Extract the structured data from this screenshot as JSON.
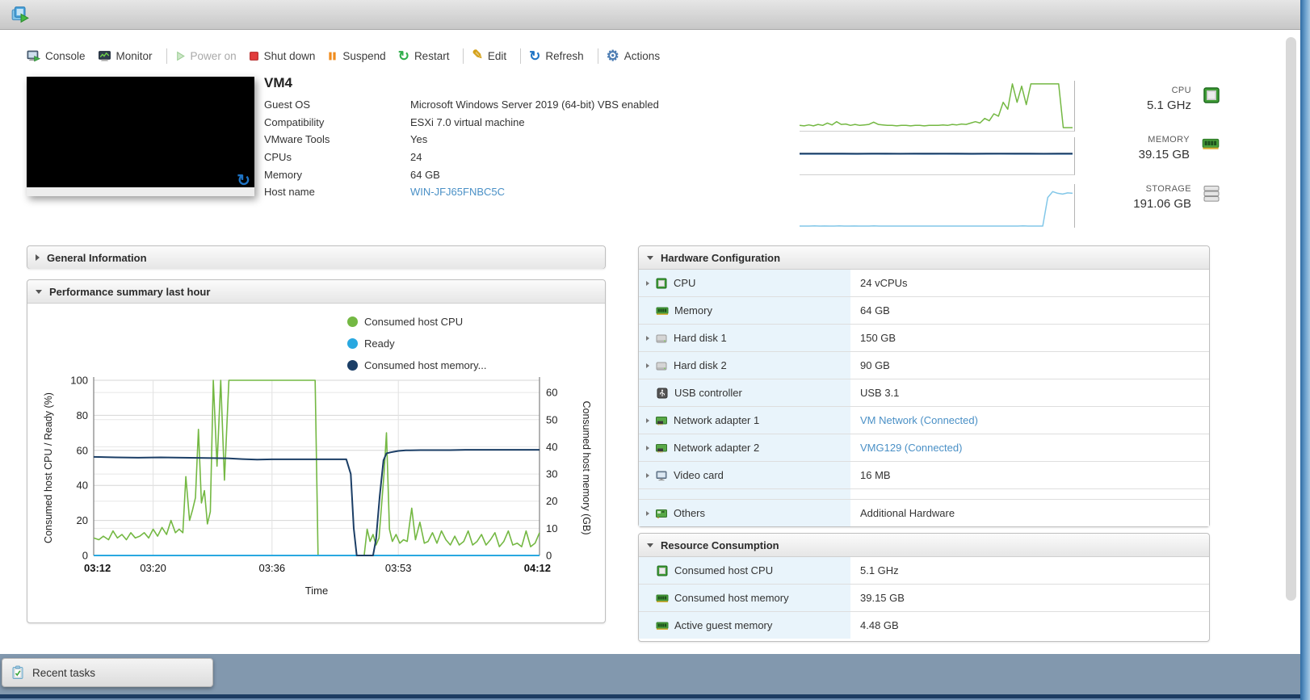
{
  "toolbar": {
    "items": [
      {
        "id": "console",
        "label": "Console",
        "icon": "console",
        "enabled": true,
        "sep_after": false
      },
      {
        "id": "monitor",
        "label": "Monitor",
        "icon": "monitor",
        "enabled": true,
        "sep_after": true
      },
      {
        "id": "power-on",
        "label": "Power on",
        "icon": "play",
        "enabled": false,
        "sep_after": false
      },
      {
        "id": "shut-down",
        "label": "Shut down",
        "icon": "stop",
        "enabled": true,
        "sep_after": false
      },
      {
        "id": "suspend",
        "label": "Suspend",
        "icon": "pause",
        "enabled": true,
        "sep_after": false
      },
      {
        "id": "restart",
        "label": "Restart",
        "icon": "restart",
        "enabled": true,
        "sep_after": true
      },
      {
        "id": "edit",
        "label": "Edit",
        "icon": "edit",
        "enabled": true,
        "sep_after": true
      },
      {
        "id": "refresh",
        "label": "Refresh",
        "icon": "refresh",
        "enabled": true,
        "sep_after": true
      },
      {
        "id": "actions",
        "label": "Actions",
        "icon": "gear",
        "enabled": true,
        "sep_after": false
      }
    ]
  },
  "vm": {
    "name": "VM4",
    "fields": [
      {
        "label": "Guest OS",
        "value": "Microsoft Windows Server 2019 (64-bit) VBS enabled",
        "link": false
      },
      {
        "label": "Compatibility",
        "value": "ESXi 7.0 virtual machine",
        "link": false
      },
      {
        "label": "VMware Tools",
        "value": "Yes",
        "link": false
      },
      {
        "label": "CPUs",
        "value": "24",
        "link": false
      },
      {
        "label": "Memory",
        "value": "64 GB",
        "link": false
      },
      {
        "label": "Host name",
        "value": "WIN-JFJ65FNBC5C",
        "link": true
      }
    ]
  },
  "stats": {
    "items": [
      {
        "label": "CPU",
        "value": "5.1 GHz",
        "icon": "cpu-chip-lg"
      },
      {
        "label": "MEMORY",
        "value": "39.15 GB",
        "icon": "ram-lg"
      },
      {
        "label": "STORAGE",
        "value": "191.06 GB",
        "icon": "storage-stack"
      }
    ]
  },
  "panels": {
    "general": {
      "title": "General Information",
      "collapsed": true
    },
    "performance": {
      "title": "Performance summary last hour"
    },
    "hardware": {
      "title": "Hardware Configuration",
      "rows": [
        {
          "caret": true,
          "icon": "cpu-chip",
          "label": "CPU",
          "value": "24 vCPUs",
          "link": false
        },
        {
          "caret": false,
          "icon": "ram",
          "label": "Memory",
          "value": "64 GB",
          "link": false
        },
        {
          "caret": true,
          "icon": "hdd",
          "label": "Hard disk 1",
          "value": "150 GB",
          "link": false
        },
        {
          "caret": true,
          "icon": "hdd",
          "label": "Hard disk 2",
          "value": "90 GB",
          "link": false
        },
        {
          "caret": false,
          "icon": "usb",
          "label": "USB controller",
          "value": "USB 3.1",
          "link": false
        },
        {
          "caret": true,
          "icon": "nic",
          "label": "Network adapter 1",
          "value": "VM Network (Connected)",
          "link": true
        },
        {
          "caret": true,
          "icon": "nic",
          "label": "Network adapter 2",
          "value": "VMG129 (Connected)",
          "link": true
        },
        {
          "caret": true,
          "icon": "video",
          "label": "Video card",
          "value": "16 MB",
          "link": false
        },
        {
          "spacer": true
        },
        {
          "caret": true,
          "icon": "others",
          "label": "Others",
          "value": "Additional Hardware",
          "link": false
        }
      ]
    },
    "resource": {
      "title": "Resource Consumption",
      "rows": [
        {
          "icon": "cpu-chip",
          "label": "Consumed host CPU",
          "value": "5.1 GHz"
        },
        {
          "icon": "ram",
          "label": "Consumed host memory",
          "value": "39.15 GB"
        },
        {
          "icon": "ram",
          "label": "Active guest memory",
          "value": "4.48 GB"
        }
      ]
    }
  },
  "footer": {
    "recent_tasks_label": "Recent tasks"
  },
  "chart_data": [
    {
      "type": "line",
      "title": "Performance summary last hour",
      "xlabel": "Time",
      "x_range_minutes": [
        0,
        60
      ],
      "x_ticks": [
        {
          "label": "03:12",
          "min": 0,
          "bold": true
        },
        {
          "label": "03:20",
          "min": 8,
          "bold": false
        },
        {
          "label": "03:36",
          "min": 24,
          "bold": false
        },
        {
          "label": "03:53",
          "min": 41,
          "bold": false
        },
        {
          "label": "04:12",
          "min": 60,
          "bold": true
        }
      ],
      "left_axis": {
        "label": "Consumed host CPU / Ready (%)",
        "range": [
          0,
          100
        ],
        "ticks": [
          0,
          20,
          40,
          60,
          80,
          100
        ]
      },
      "right_axis": {
        "label": "Consumed host memory (GB)",
        "range": [
          0,
          64.5
        ],
        "ticks": [
          0,
          10,
          20,
          30,
          40,
          50,
          60
        ]
      },
      "legend": [
        {
          "label": "Consumed host CPU",
          "color": "#74b843"
        },
        {
          "label": "Ready",
          "color": "#29a8e0"
        },
        {
          "label": "Consumed host memory...",
          "color": "#1b3e66"
        }
      ],
      "grid": true,
      "series": [
        {
          "name": "Consumed host CPU",
          "axis": "left",
          "color": "#74b843",
          "width": 1.6,
          "points": [
            [
              0,
              10
            ],
            [
              0.7,
              9
            ],
            [
              1.3,
              11
            ],
            [
              2,
              9
            ],
            [
              2.6,
              14
            ],
            [
              3.2,
              10
            ],
            [
              3.8,
              12
            ],
            [
              4.4,
              9
            ],
            [
              5,
              13
            ],
            [
              5.6,
              10
            ],
            [
              6.2,
              11
            ],
            [
              6.8,
              13
            ],
            [
              7.4,
              10
            ],
            [
              8,
              15
            ],
            [
              8.6,
              11
            ],
            [
              9.2,
              16
            ],
            [
              9.8,
              12
            ],
            [
              10.4,
              20
            ],
            [
              11,
              13
            ],
            [
              11.5,
              15
            ],
            [
              12,
              13
            ],
            [
              12.4,
              45
            ],
            [
              12.9,
              20
            ],
            [
              13.3,
              26
            ],
            [
              13.7,
              33
            ],
            [
              14.1,
              72
            ],
            [
              14.5,
              30
            ],
            [
              14.9,
              37
            ],
            [
              15.3,
              18
            ],
            [
              15.7,
              25
            ],
            [
              16.1,
              100
            ],
            [
              16.6,
              51
            ],
            [
              17.1,
              100
            ],
            [
              17.6,
              43
            ],
            [
              18.2,
              100
            ],
            [
              19,
              100
            ],
            [
              21,
              100
            ],
            [
              23,
              100
            ],
            [
              25,
              100
            ],
            [
              27,
              100
            ],
            [
              29,
              100
            ],
            [
              29.8,
              100
            ],
            [
              30.2,
              0
            ],
            [
              31,
              0
            ],
            [
              33,
              0
            ],
            [
              35,
              0
            ],
            [
              36.4,
              0
            ],
            [
              36.8,
              15
            ],
            [
              37.2,
              8
            ],
            [
              37.6,
              12
            ],
            [
              38,
              6
            ],
            [
              38.4,
              10
            ],
            [
              39.1,
              48
            ],
            [
              39.4,
              70
            ],
            [
              39.8,
              15
            ],
            [
              40.2,
              8
            ],
            [
              40.7,
              12
            ],
            [
              41.2,
              7
            ],
            [
              41.7,
              9
            ],
            [
              42.2,
              8
            ],
            [
              42.8,
              27
            ],
            [
              43.3,
              9
            ],
            [
              43.9,
              19
            ],
            [
              44.5,
              7
            ],
            [
              45,
              8
            ],
            [
              45.6,
              13
            ],
            [
              46.2,
              7
            ],
            [
              46.8,
              14
            ],
            [
              47.4,
              9
            ],
            [
              48,
              6
            ],
            [
              48.6,
              11
            ],
            [
              49.2,
              6
            ],
            [
              49.8,
              8
            ],
            [
              50.4,
              14
            ],
            [
              51,
              6
            ],
            [
              51.6,
              8
            ],
            [
              52.2,
              12
            ],
            [
              52.8,
              6
            ],
            [
              53.4,
              9
            ],
            [
              54,
              13
            ],
            [
              54.6,
              5
            ],
            [
              55.2,
              8
            ],
            [
              55.8,
              14
            ],
            [
              56.4,
              6
            ],
            [
              57,
              7
            ],
            [
              57.6,
              5
            ],
            [
              58.2,
              14
            ],
            [
              58.8,
              5
            ],
            [
              59.4,
              7
            ],
            [
              60,
              13
            ]
          ]
        },
        {
          "name": "Ready",
          "axis": "left",
          "color": "#29a8e0",
          "width": 2,
          "points": [
            [
              0,
              0
            ],
            [
              60,
              0
            ]
          ]
        },
        {
          "name": "Consumed host memory",
          "axis": "right",
          "color": "#1b3e66",
          "width": 2,
          "points": [
            [
              0,
              36.3
            ],
            [
              3,
              36.1
            ],
            [
              6,
              36.0
            ],
            [
              9,
              36.1
            ],
            [
              12,
              36.0
            ],
            [
              15,
              35.9
            ],
            [
              18,
              35.8
            ],
            [
              20,
              35.5
            ],
            [
              22,
              35.3
            ],
            [
              24,
              35.4
            ],
            [
              26,
              35.4
            ],
            [
              28,
              35.4
            ],
            [
              30,
              35.4
            ],
            [
              32,
              35.4
            ],
            [
              34,
              35.4
            ],
            [
              34.6,
              30
            ],
            [
              35,
              10
            ],
            [
              35.4,
              0
            ],
            [
              36,
              0
            ],
            [
              37,
              0
            ],
            [
              37.6,
              0
            ],
            [
              38,
              6
            ],
            [
              38.5,
              22
            ],
            [
              39,
              35
            ],
            [
              39.4,
              37.6
            ],
            [
              40,
              38
            ],
            [
              41,
              38.5
            ],
            [
              42,
              38.7
            ],
            [
              44,
              38.8
            ],
            [
              46,
              38.8
            ],
            [
              48,
              38.8
            ],
            [
              50,
              38.9
            ],
            [
              52,
              38.9
            ],
            [
              54,
              38.9
            ],
            [
              56,
              38.9
            ],
            [
              58,
              38.9
            ],
            [
              60,
              38.9
            ]
          ]
        }
      ]
    },
    {
      "type": "line",
      "name": "cpu-sparkline",
      "title": "CPU",
      "color": "#74b843",
      "ylim": [
        0,
        105
      ],
      "values": [
        10,
        9,
        11,
        9,
        12,
        10,
        15,
        11,
        18,
        12,
        13,
        10,
        12,
        10,
        11,
        12,
        17,
        12,
        11,
        10,
        10,
        9,
        10,
        10,
        9,
        10,
        10,
        9,
        10,
        10,
        10,
        11,
        10,
        12,
        11,
        13,
        12,
        15,
        18,
        15,
        25,
        20,
        35,
        30,
        60,
        45,
        100,
        60,
        95,
        55,
        100,
        100,
        100,
        100,
        100,
        100,
        100,
        5,
        5,
        5
      ]
    },
    {
      "type": "line",
      "name": "memory-sparkline",
      "title": "MEMORY",
      "ylim": [
        0,
        64.5
      ],
      "series": [
        {
          "name": "secondary",
          "color": "#a9c7e4",
          "values": [
            34.8,
            34.9,
            34.7,
            35.0,
            34.8,
            35.2,
            34.9,
            35.4,
            35.0,
            34.8,
            35.1,
            34.9,
            34.7,
            35.0,
            35.2,
            34.9,
            34.8,
            35.1,
            34.9,
            34.8
          ]
        },
        {
          "name": "consumed",
          "color": "#1b3e66",
          "values": [
            36.3,
            36.2,
            36.2,
            36.3,
            36.1,
            36.2,
            36.2,
            36.1,
            36.2,
            36.3,
            36.2,
            36.2,
            36.1,
            36.2,
            36.2,
            36.3,
            36.2,
            36.1,
            36.2,
            36.2
          ]
        }
      ]
    },
    {
      "type": "line",
      "name": "storage-sparkline",
      "title": "STORAGE",
      "color": "#82c7e8",
      "ylim": [
        0,
        100
      ],
      "values": [
        2,
        2,
        2,
        2.5,
        2,
        2.2,
        2,
        2,
        2.4,
        2,
        2,
        2.2,
        2,
        2,
        2,
        2.3,
        2,
        2,
        2,
        2,
        2,
        2,
        2,
        2,
        2,
        2,
        2,
        2,
        2,
        2,
        2,
        2,
        2,
        2,
        2,
        2,
        2,
        2,
        2,
        2,
        2,
        2,
        2,
        2,
        2,
        2.5,
        2,
        2,
        2,
        2,
        70,
        84,
        80,
        78,
        81,
        80
      ]
    }
  ]
}
